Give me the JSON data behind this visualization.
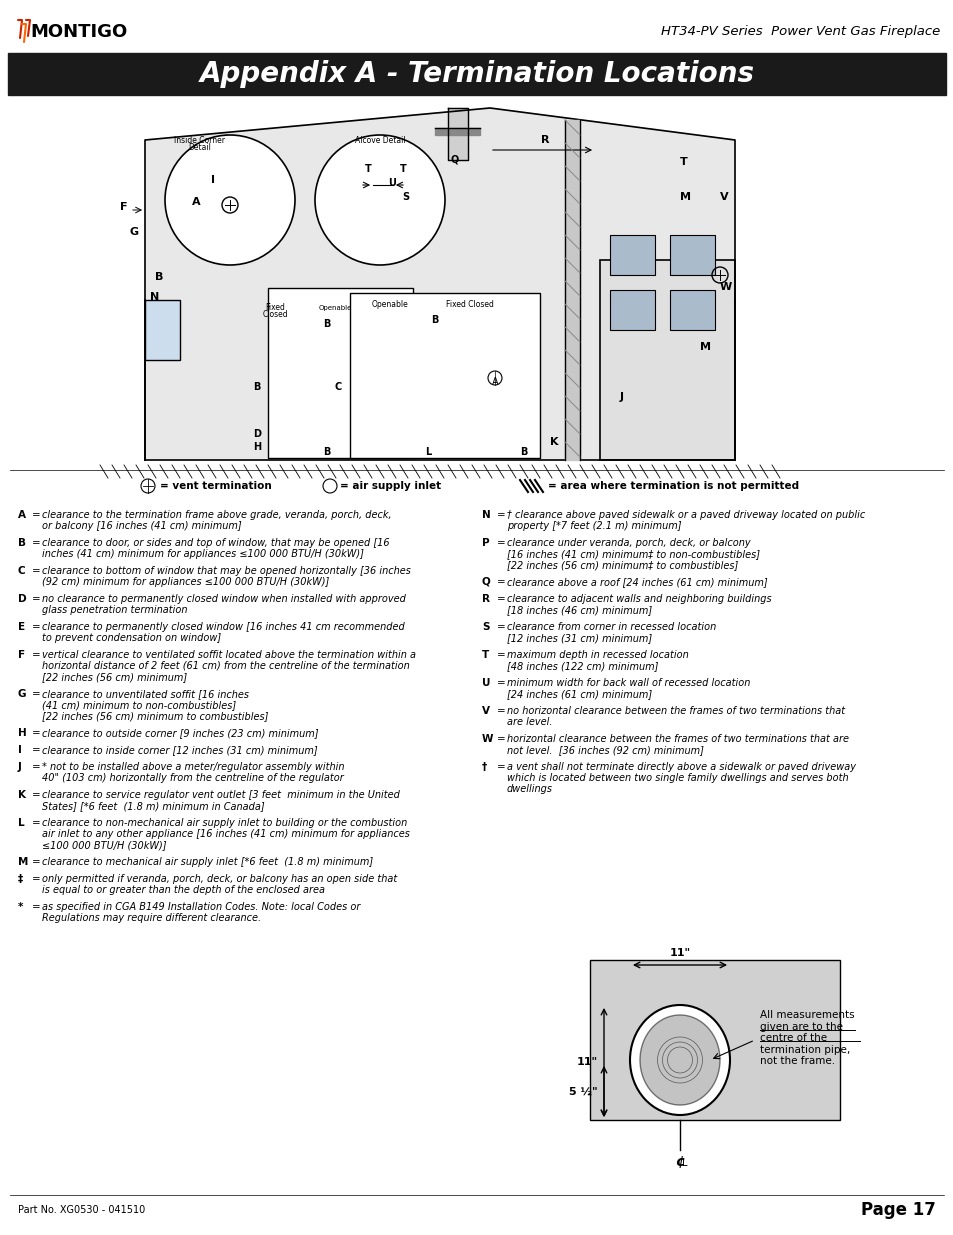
{
  "page_title": "Appendix A - Termination Locations",
  "header_right": "HT34-PV Series  Power Vent Gas Fireplace",
  "page_num": "Page 17",
  "part_no": "Part No. XG0530 - 041510",
  "title_bg": "#1a1a1a",
  "title_color": "#ffffff",
  "body_bg": "#ffffff",
  "legend_line": "⌂= vent termination     ⊙ = air supply inlet     //// = area where termination is not permitted",
  "definitions": [
    [
      "A",
      "clearance to the termination frame above grade, veranda, porch, deck,\nor balcony [16 inches (41 cm) minimum]"
    ],
    [
      "B",
      "clearance to door, or sides and top of window, that may be opened [16\ninches (41 cm) minimum for appliances ≤100 000 BTU/H (30kW)]"
    ],
    [
      "C",
      "clearance to bottom of window that may be opened horizontally [36 inches\n(92 cm) minimum for appliances ≤100 000 BTU/H (30kW)]"
    ],
    [
      "D",
      "no clearance to permanently closed window when installed with approved\nglass penetration termination"
    ],
    [
      "E",
      "clearance to permanently closed window [16 inches 41 cm recommended\nto prevent condensation on window]"
    ],
    [
      "F",
      "vertical clearance to ventilated soffit located above the termination within a\nhorizontal distance of 2 feet (61 cm) from the centreline of the termination\n[22 inches (56 cm) minimum]"
    ],
    [
      "G",
      "clearance to unventilated soffit [16 inches\n(41 cm) minimum to non-combustibles]\n[22 inches (56 cm) minimum to combustibles]"
    ],
    [
      "H",
      "clearance to outside corner [9 inches (23 cm) minimum]"
    ],
    [
      "I",
      "clearance to inside corner [12 inches (31 cm) minimum]"
    ],
    [
      "J",
      "* not to be installed above a meter/regulator assembly within\n40\" (103 cm) horizontally from the centreline of the regulator"
    ],
    [
      "K",
      "clearance to service regulator vent outlet [3 feet  minimum in the United\nStates] [*6 feet  (1.8 m) minimum in Canada]"
    ],
    [
      "L",
      "clearance to non-mechanical air supply inlet to building or the combustion\nair inlet to any other appliance [16 inches (41 cm) minimum for appliances\n≤100 000 BTU/H (30kW)]"
    ],
    [
      "M",
      "clearance to mechanical air supply inlet [*6 feet  (1.8 m) minimum]"
    ],
    [
      "‡",
      "only permitted if veranda, porch, deck, or balcony has an open side that\nis equal to or greater than the depth of the enclosed area"
    ],
    [
      "*",
      "as specified in CGA B149 Installation Codes. Note: local Codes or\nRegulations may require different clearance."
    ]
  ],
  "definitions_right": [
    [
      "N",
      "† clearance above paved sidewalk or a paved driveway located on public\nproperty [*7 feet (2.1 m) minimum]"
    ],
    [
      "P",
      "clearance under veranda, porch, deck, or balcony\n[16 inches (41 cm) minimum‡ to non-combustibles]\n[22 inches (56 cm) minimum‡ to combustibles]"
    ],
    [
      "Q",
      "clearance above a roof [24 inches (61 cm) minimum]"
    ],
    [
      "R",
      "clearance to adjacent walls and neighboring buildings\n[18 inches (46 cm) minimum]"
    ],
    [
      "S",
      "clearance from corner in recessed location\n[12 inches (31 cm) minimum]"
    ],
    [
      "T",
      "maximum depth in recessed location\n[48 inches (122 cm) minimum]"
    ],
    [
      "U",
      "minimum width for back wall of recessed location\n[24 inches (61 cm) minimum]"
    ],
    [
      "V",
      "no horizontal clearance between the frames of two terminations that\nare level."
    ],
    [
      "W",
      "horizontal clearance between the frames of two terminations that are\nnot level.  [36 inches (92 cm) minimum]"
    ],
    [
      "†",
      "a vent shall not terminate directly above a sidewalk or paved driveway\nwhich is located between two single family dwellings and serves both\ndwellings"
    ]
  ],
  "diagram_note": "All measurements\ngiven are to the\ncentre of the\ntermination pipe,\nnot the frame.",
  "diagram_dims": [
    "11\"",
    "11\"",
    "5 ½\""
  ]
}
